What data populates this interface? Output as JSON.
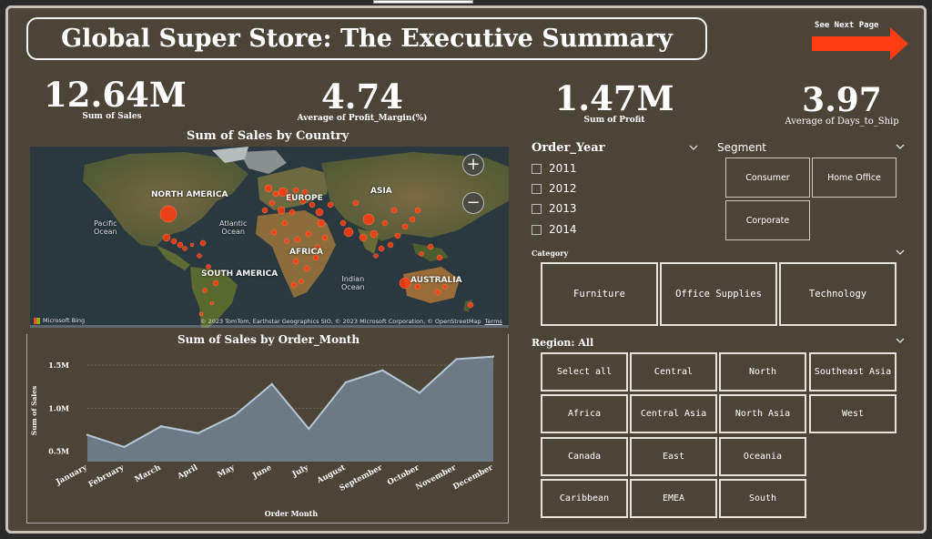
{
  "title": "Global Super Store: The Executive Summary",
  "next_page": "See Next Page",
  "kpis": [
    {
      "value": "12.64M",
      "caption": "Sum of Sales"
    },
    {
      "value": "4.74",
      "caption": "Average of Profit_Margin(%)"
    },
    {
      "value": "1.47M",
      "caption": "Sum of Profit"
    },
    {
      "value": "3.97",
      "caption": "Average of Days_to_Ship"
    }
  ],
  "map": {
    "title": "Sum of Sales by Country",
    "labels": {
      "north_america": "NORTH AMERICA",
      "europe": "EUROPE",
      "asia": "ASIA",
      "africa": "AFRICA",
      "south_america": "SOUTH AMERICA",
      "australia": "AUSTRALIA",
      "pacific": "Pacific\nOcean",
      "atlantic": "Atlantic\nOcean",
      "indian": "Indian\nOcean"
    },
    "attribution": "© 2023 TomTom, Earthstar Geographics SIO, © 2023 Microsoft Corporation, © OpenStreetMap",
    "terms": "Terms",
    "bing": "Microsoft Bing",
    "zoom_in": "+",
    "zoom_out": "−",
    "bubble_color": "#ff3b0f"
  },
  "chart_data": {
    "type": "area",
    "title": "Sum of Sales by Order_Month",
    "xlabel": "Order Month",
    "ylabel": "Sum of Sales",
    "categories": [
      "January",
      "February",
      "March",
      "April",
      "May",
      "June",
      "July",
      "August",
      "September",
      "October",
      "November",
      "December"
    ],
    "values": [
      0.69,
      0.55,
      0.79,
      0.71,
      0.92,
      1.28,
      0.76,
      1.3,
      1.44,
      1.18,
      1.57,
      1.6
    ],
    "yticks": [
      {
        "v": 0.5,
        "label": "0.5M"
      },
      {
        "v": 1.0,
        "label": "1.0M"
      },
      {
        "v": 1.5,
        "label": "1.5M"
      }
    ],
    "ylim": [
      0.38,
      1.67
    ],
    "fill": "#6f7d8a",
    "line": "#b3c7d6"
  },
  "order_year": {
    "title": "Order_Year",
    "items": [
      "2011",
      "2012",
      "2013",
      "2014"
    ]
  },
  "segment": {
    "title": "Segment",
    "items": [
      "Consumer",
      "Home Office",
      "Corporate"
    ]
  },
  "category": {
    "title": "Category",
    "items": [
      "Furniture",
      "Office Supplies",
      "Technology"
    ]
  },
  "region": {
    "title": "Region: All",
    "items": [
      "Select all",
      "Central",
      "North",
      "Southeast Asia",
      "Africa",
      "Central Asia",
      "North Asia",
      "West",
      "Canada",
      "East",
      "Oceania",
      "Caribbean",
      "EMEA",
      "South"
    ]
  }
}
